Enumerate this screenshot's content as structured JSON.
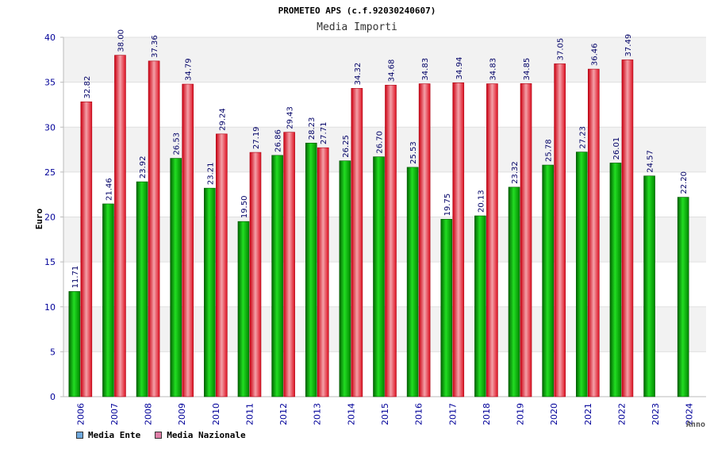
{
  "chart_data": {
    "type": "bar",
    "title": "PROMETEO APS (c.f.92030240607)",
    "subtitle": "Media Importi",
    "xlabel": "Anno",
    "ylabel": "Euro",
    "ylim": [
      0,
      40
    ],
    "yticks": [
      "0",
      "5",
      "10",
      "15",
      "20",
      "25",
      "30",
      "35",
      "40"
    ],
    "categories": [
      "2006",
      "2007",
      "2008",
      "2009",
      "2010",
      "2011",
      "2012",
      "2013",
      "2014",
      "2015",
      "2016",
      "2017",
      "2018",
      "2019",
      "2020",
      "2021",
      "2022",
      "2023",
      "2024"
    ],
    "series": [
      {
        "name": "Media Ente",
        "values": [
          11.71,
          21.46,
          23.92,
          26.53,
          23.21,
          19.5,
          26.86,
          28.23,
          26.25,
          26.7,
          25.53,
          19.75,
          20.13,
          23.32,
          25.78,
          27.23,
          26.01,
          24.57,
          22.2
        ],
        "labels": [
          "11.71",
          "21.46",
          "23.92",
          "26.53",
          "23.21",
          "19.50",
          "26.86",
          "28.23",
          "26.25",
          "26.70",
          "25.53",
          "19.75",
          "20.13",
          "23.32",
          "25.78",
          "27.23",
          "26.01",
          "24.57",
          "22.20"
        ]
      },
      {
        "name": "Media Nazionale",
        "values": [
          32.82,
          38.0,
          37.36,
          34.79,
          29.24,
          27.19,
          29.43,
          27.71,
          34.32,
          34.68,
          34.83,
          34.94,
          34.83,
          34.85,
          37.05,
          36.46,
          37.49,
          null,
          null
        ],
        "labels": [
          "32.82",
          "38.00",
          "37.36",
          "34.79",
          "29.24",
          "27.19",
          "29.43",
          "27.71",
          "34.32",
          "34.68",
          "34.83",
          "34.94",
          "34.83",
          "34.85",
          "37.05",
          "36.46",
          "37.49",
          "",
          ""
        ]
      }
    ],
    "legend": [
      {
        "label": "Media Ente",
        "color": "#6fa8dc"
      },
      {
        "label": "Media Nazionale",
        "color": "#e07fa8"
      }
    ]
  }
}
